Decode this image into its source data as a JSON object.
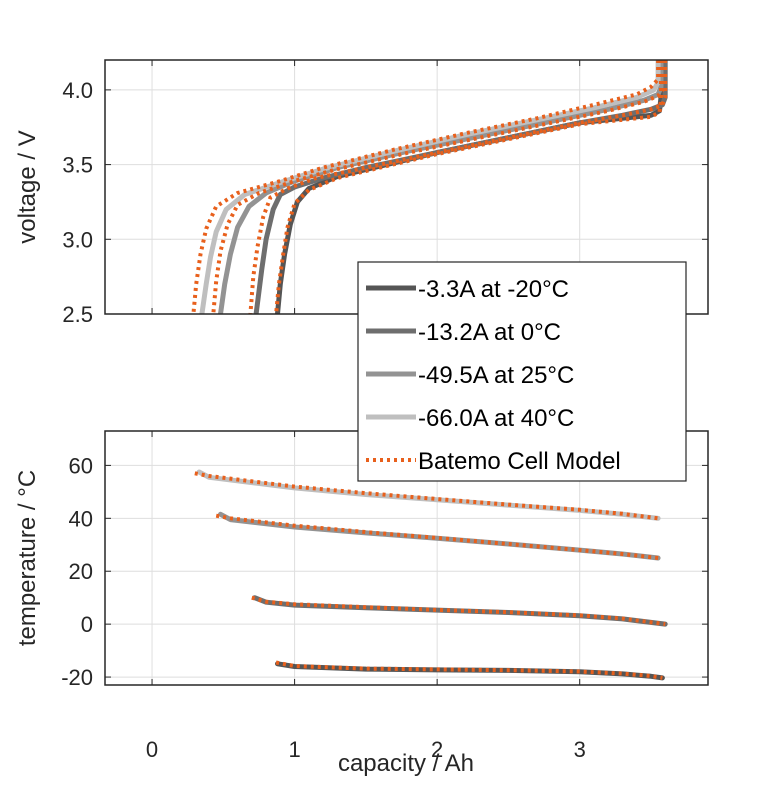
{
  "chart_data": [
    {
      "id": "voltage",
      "type": "line",
      "title": "",
      "xlabel": "",
      "ylabel": "voltage / V",
      "xlim": [
        -0.33,
        3.9
      ],
      "ylim": [
        2.5,
        4.2
      ],
      "xticks": [
        0,
        1,
        2,
        3
      ],
      "xtick_labels": [
        "",
        "",
        "",
        ""
      ],
      "yticks": [
        2.5,
        3.0,
        3.5,
        4.0
      ],
      "ytick_labels": [
        "2.5",
        "3.0",
        "3.5",
        "4.0"
      ],
      "grid": true,
      "series": [
        {
          "name": "-3.3A at -20°C",
          "color": "#555555",
          "style": "solid",
          "x": [
            3.57,
            3.57,
            3.56,
            3.5,
            3.3,
            3.0,
            2.5,
            2.0,
            1.6,
            1.3,
            1.1,
            1.02,
            0.97,
            0.93,
            0.9,
            0.88
          ],
          "y": [
            4.2,
            3.95,
            3.86,
            3.83,
            3.81,
            3.78,
            3.68,
            3.58,
            3.49,
            3.42,
            3.34,
            3.25,
            3.1,
            2.9,
            2.7,
            2.5
          ]
        },
        {
          "name": "-13.2A at 0°C",
          "color": "#6e6e6e",
          "style": "solid",
          "x": [
            3.6,
            3.6,
            3.58,
            3.5,
            3.3,
            3.0,
            2.5,
            2.0,
            1.5,
            1.2,
            1.0,
            0.9,
            0.85,
            0.8,
            0.77,
            0.73
          ],
          "y": [
            4.2,
            3.95,
            3.9,
            3.87,
            3.83,
            3.78,
            3.68,
            3.58,
            3.48,
            3.41,
            3.35,
            3.3,
            3.2,
            3.0,
            2.8,
            2.5
          ]
        },
        {
          "name": "-49.5A at 25°C",
          "color": "#939393",
          "style": "solid",
          "x": [
            3.57,
            3.57,
            3.55,
            3.45,
            3.2,
            2.8,
            2.3,
            1.8,
            1.3,
            1.0,
            0.8,
            0.68,
            0.6,
            0.55,
            0.51,
            0.48
          ],
          "y": [
            4.2,
            4.02,
            3.97,
            3.93,
            3.87,
            3.79,
            3.69,
            3.59,
            3.48,
            3.39,
            3.31,
            3.22,
            3.08,
            2.9,
            2.7,
            2.5
          ]
        },
        {
          "name": "-66.0A at 40°C",
          "color": "#bfbfbf",
          "style": "solid",
          "x": [
            3.55,
            3.55,
            3.52,
            3.4,
            3.1,
            2.7,
            2.2,
            1.7,
            1.2,
            0.9,
            0.65,
            0.52,
            0.45,
            0.41,
            0.38,
            0.35
          ],
          "y": [
            4.2,
            4.05,
            4.0,
            3.95,
            3.88,
            3.8,
            3.7,
            3.59,
            3.47,
            3.38,
            3.3,
            3.2,
            3.05,
            2.88,
            2.7,
            2.5
          ]
        },
        {
          "name": "Batemo Cell Model",
          "color": "#e8601c",
          "style": "dotted",
          "x": [
            3.55,
            3.55,
            3.5,
            3.4,
            3.1,
            2.7,
            2.2,
            1.7,
            1.2,
            0.9,
            0.6,
            0.45,
            0.38,
            0.34,
            0.31,
            0.29
          ],
          "y": [
            4.2,
            4.07,
            4.02,
            3.97,
            3.9,
            3.81,
            3.71,
            3.6,
            3.48,
            3.39,
            3.31,
            3.22,
            3.07,
            2.9,
            2.7,
            2.5
          ]
        }
      ],
      "model_traces": [
        {
          "x": [
            3.58,
            3.58,
            3.55,
            3.45,
            3.2,
            2.8,
            2.3,
            1.8,
            1.3,
            1.0,
            0.75,
            0.6,
            0.53,
            0.48,
            0.45,
            0.43
          ],
          "y": [
            4.2,
            4.0,
            3.96,
            3.92,
            3.86,
            3.78,
            3.68,
            3.58,
            3.47,
            3.39,
            3.31,
            3.23,
            3.1,
            2.92,
            2.72,
            2.5
          ]
        },
        {
          "x": [
            3.6,
            3.6,
            3.58,
            3.5,
            3.3,
            3.0,
            2.5,
            2.0,
            1.5,
            1.15,
            0.95,
            0.83,
            0.78,
            0.74,
            0.71,
            0.69
          ],
          "y": [
            4.2,
            3.95,
            3.9,
            3.87,
            3.83,
            3.78,
            3.68,
            3.58,
            3.48,
            3.41,
            3.34,
            3.28,
            3.15,
            2.95,
            2.75,
            2.5
          ]
        },
        {
          "x": [
            3.57,
            3.57,
            3.56,
            3.5,
            3.3,
            3.0,
            2.5,
            2.0,
            1.6,
            1.3,
            1.1,
            1.0,
            0.95,
            0.92,
            0.89,
            0.87
          ],
          "y": [
            4.2,
            3.93,
            3.85,
            3.82,
            3.8,
            3.77,
            3.67,
            3.57,
            3.48,
            3.41,
            3.33,
            3.24,
            3.08,
            2.9,
            2.7,
            2.5
          ]
        }
      ]
    },
    {
      "id": "temperature",
      "type": "line",
      "title": "",
      "xlabel": "capacity / Ah",
      "ylabel": "temperature / °C",
      "xlim": [
        -0.33,
        3.9
      ],
      "ylim": [
        -23,
        73
      ],
      "xticks": [
        0,
        1,
        2,
        3
      ],
      "xtick_labels": [
        "0",
        "1",
        "2",
        "3"
      ],
      "yticks": [
        -20,
        0,
        20,
        40,
        60
      ],
      "ytick_labels": [
        "-20",
        "0",
        "20",
        "40",
        "60"
      ],
      "grid": true,
      "series": [
        {
          "name": "-3.3A at -20°C",
          "color": "#555555",
          "style": "solid",
          "x": [
            0.88,
            1.0,
            1.5,
            2.0,
            2.5,
            3.0,
            3.3,
            3.5,
            3.58
          ],
          "y": [
            -15.0,
            -16.0,
            -17.0,
            -17.3,
            -17.5,
            -18.0,
            -18.8,
            -19.7,
            -20.3
          ]
        },
        {
          "name": "-13.2A at 0°C",
          "color": "#6e6e6e",
          "style": "solid",
          "x": [
            0.72,
            0.8,
            1.0,
            1.5,
            2.0,
            2.5,
            3.0,
            3.3,
            3.6
          ],
          "y": [
            10.0,
            8.3,
            7.2,
            6.2,
            5.3,
            4.4,
            3.2,
            2.0,
            0.0
          ]
        },
        {
          "name": "-49.5A at 25°C",
          "color": "#939393",
          "style": "solid",
          "x": [
            0.48,
            0.55,
            1.0,
            1.5,
            2.0,
            2.5,
            3.0,
            3.3,
            3.55
          ],
          "y": [
            41.5,
            39.5,
            36.7,
            34.5,
            32.5,
            30.3,
            28.0,
            26.5,
            25.0
          ]
        },
        {
          "name": "-66.0A at 40°C",
          "color": "#bfbfbf",
          "style": "solid",
          "x": [
            0.33,
            0.4,
            1.0,
            1.5,
            2.0,
            2.5,
            3.0,
            3.3,
            3.55
          ],
          "y": [
            57.5,
            55.5,
            51.5,
            49.0,
            47.0,
            45.0,
            43.0,
            41.5,
            40.0
          ]
        },
        {
          "name": "Batemo Cell Model",
          "color": "#e8601c",
          "style": "dotted",
          "x": [
            0.3,
            0.4,
            1.0,
            1.5,
            2.0,
            2.5,
            3.0,
            3.3,
            3.55
          ],
          "y": [
            57.0,
            56.0,
            52.0,
            49.5,
            47.3,
            45.2,
            43.2,
            41.7,
            40.0
          ]
        }
      ],
      "model_traces": [
        {
          "x": [
            0.45,
            0.55,
            1.0,
            1.5,
            2.0,
            2.5,
            3.0,
            3.3,
            3.55
          ],
          "y": [
            41.0,
            40.0,
            37.2,
            34.8,
            32.6,
            30.3,
            28.0,
            26.5,
            25.0
          ]
        },
        {
          "x": [
            0.7,
            0.8,
            1.0,
            1.5,
            2.0,
            2.5,
            3.0,
            3.3,
            3.6
          ],
          "y": [
            10.0,
            8.5,
            7.5,
            6.4,
            5.4,
            4.5,
            3.3,
            2.1,
            0.0
          ]
        },
        {
          "x": [
            0.87,
            1.0,
            1.5,
            2.0,
            2.5,
            3.0,
            3.3,
            3.5,
            3.58
          ],
          "y": [
            -14.5,
            -15.8,
            -16.8,
            -17.1,
            -17.4,
            -17.9,
            -18.7,
            -19.6,
            -20.3
          ]
        }
      ]
    }
  ],
  "legend": {
    "placement": "center-right",
    "entries": [
      {
        "label": "-3.3A at -20°C",
        "color": "#555555",
        "style": "solid"
      },
      {
        "label": "-13.2A at 0°C",
        "color": "#6e6e6e",
        "style": "solid"
      },
      {
        "label": "-49.5A at 25°C",
        "color": "#939393",
        "style": "solid"
      },
      {
        "label": "-66.0A at 40°C",
        "color": "#bfbfbf",
        "style": "solid"
      },
      {
        "label": "Batemo Cell Model",
        "color": "#e8601c",
        "style": "dotted"
      }
    ]
  },
  "labels": {
    "voltage_ylabel": "voltage / V",
    "temperature_ylabel": "temperature / °C",
    "xlabel": "capacity / Ah"
  }
}
